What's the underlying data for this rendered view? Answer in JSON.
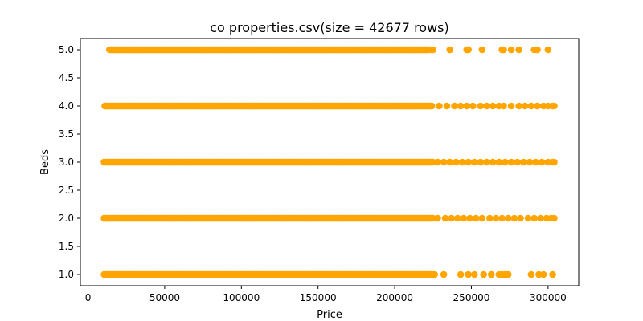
{
  "chart_data": {
    "type": "scatter",
    "title": "co properties.csv(size = 42677 rows)",
    "xlabel": "Price",
    "ylabel": "Beds",
    "xlim": [
      -5000,
      320000
    ],
    "ylim": [
      0.8,
      5.2
    ],
    "x_ticks": [
      0,
      50000,
      100000,
      150000,
      200000,
      250000,
      300000
    ],
    "x_tick_labels": [
      "0",
      "50000",
      "100000",
      "150000",
      "200000",
      "250000",
      "300000"
    ],
    "y_ticks": [
      1.0,
      1.5,
      2.0,
      2.5,
      3.0,
      3.5,
      4.0,
      4.5,
      5.0
    ],
    "y_tick_labels": [
      "1.0",
      "1.5",
      "2.0",
      "2.5",
      "3.0",
      "3.5",
      "4.0",
      "4.5",
      "5.0"
    ],
    "marker_color": "#ffa500",
    "grid": false,
    "series": [
      {
        "beds": 1,
        "dense_range": [
          11000,
          225000
        ],
        "sparse_points": [
          10500,
          226000,
          232000,
          243000,
          248000,
          252000,
          258000,
          263000,
          268000,
          270000,
          272000,
          274000,
          289000,
          294000,
          297000,
          303000
        ]
      },
      {
        "beds": 2,
        "dense_range": [
          10500,
          225000
        ],
        "sparse_points": [
          228000,
          233000,
          237000,
          241000,
          245000,
          249000,
          253000,
          257000,
          262000,
          266000,
          270000,
          274000,
          278000,
          282000,
          287000,
          291000,
          295000,
          299000,
          302000,
          304000
        ]
      },
      {
        "beds": 3,
        "dense_range": [
          10500,
          225000
        ],
        "sparse_points": [
          228000,
          232000,
          236000,
          240000,
          244000,
          248000,
          252000,
          256000,
          260000,
          264000,
          268000,
          272000,
          276000,
          280000,
          284000,
          288000,
          292000,
          296000,
          300000,
          303000,
          304000
        ]
      },
      {
        "beds": 4,
        "dense_range": [
          11000,
          225000
        ],
        "sparse_points": [
          229000,
          234000,
          239000,
          243000,
          247000,
          251000,
          256000,
          260000,
          264000,
          268000,
          271000,
          276000,
          281000,
          285000,
          289000,
          293000,
          297000,
          300000,
          303000,
          304000
        ]
      },
      {
        "beds": 5,
        "dense_range": [
          14000,
          222000
        ],
        "sparse_points": [
          224000,
          225000,
          236000,
          247000,
          248000,
          257000,
          270000,
          271000,
          276000,
          281000,
          291000,
          293000,
          300000
        ]
      }
    ]
  }
}
